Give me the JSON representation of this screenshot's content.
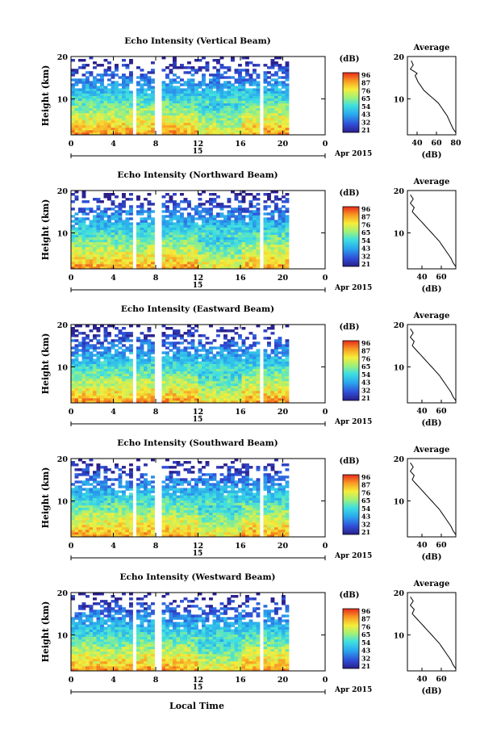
{
  "figure": {
    "xlabel": "Local Time",
    "date_label": "Apr 2015",
    "date_day": "15"
  },
  "chart_data": [
    {
      "type": "heatmap",
      "title": "Echo Intensity (Vertical Beam)",
      "ylabel": "Height (km)",
      "xlabel": "",
      "x_ticks": [
        "0",
        "4",
        "8",
        "12",
        "16",
        "20",
        "0"
      ],
      "y_ticks": [
        "10",
        "20"
      ],
      "xlim": [
        0,
        24
      ],
      "ylim": [
        1.5,
        20
      ],
      "colorbar_label": "(dB)",
      "colorbar_ticks": [
        "96",
        "87",
        "76",
        "65",
        "54",
        "43",
        "32",
        "21"
      ],
      "profile": {
        "title": "Average",
        "xlabel": "(dB)",
        "x_ticks": [
          "40",
          "60",
          "80"
        ],
        "y_ticks": [
          "10",
          "20"
        ],
        "xlim": [
          30,
          80
        ],
        "points": [
          [
            34,
            19
          ],
          [
            36,
            18
          ],
          [
            33,
            17
          ],
          [
            37,
            16.5
          ],
          [
            40,
            16
          ],
          [
            38,
            15.5
          ],
          [
            41,
            14
          ],
          [
            44,
            13
          ],
          [
            47,
            12
          ],
          [
            52,
            11
          ],
          [
            57,
            10
          ],
          [
            62,
            9
          ],
          [
            65,
            8
          ],
          [
            68,
            7
          ],
          [
            71,
            6
          ],
          [
            73,
            5
          ],
          [
            75,
            4
          ],
          [
            77,
            3
          ],
          [
            80,
            2
          ]
        ]
      },
      "data_end_time": 20.3,
      "gaps": [
        [
          5.5,
          5.9
        ],
        [
          7.8,
          8.3
        ],
        [
          17.6,
          17.9
        ]
      ]
    },
    {
      "type": "heatmap",
      "title": "Echo Intensity (Northward Beam)",
      "ylabel": "Height (km)",
      "xlabel": "",
      "x_ticks": [
        "0",
        "4",
        "8",
        "12",
        "16",
        "20",
        "0"
      ],
      "y_ticks": [
        "10",
        "20"
      ],
      "xlim": [
        0,
        24
      ],
      "ylim": [
        1.5,
        20
      ],
      "colorbar_label": "(dB)",
      "colorbar_ticks": [
        "96",
        "87",
        "76",
        "65",
        "54",
        "43",
        "32",
        "21"
      ],
      "profile": {
        "title": "Average",
        "xlabel": "(dB)",
        "x_ticks": [
          "40",
          "60"
        ],
        "y_ticks": [
          "10",
          "20"
        ],
        "xlim": [
          25,
          75
        ],
        "points": [
          [
            28,
            19
          ],
          [
            31,
            18
          ],
          [
            28,
            17
          ],
          [
            32,
            16
          ],
          [
            30,
            15
          ],
          [
            34,
            14
          ],
          [
            38,
            13
          ],
          [
            42,
            12
          ],
          [
            46,
            11
          ],
          [
            50,
            10
          ],
          [
            54,
            9
          ],
          [
            58,
            8
          ],
          [
            61,
            7
          ],
          [
            64,
            6
          ],
          [
            67,
            5
          ],
          [
            70,
            4
          ],
          [
            72,
            3
          ],
          [
            75,
            2
          ]
        ]
      },
      "data_end_time": 20.3,
      "gaps": [
        [
          5.5,
          5.9
        ],
        [
          7.8,
          8.3
        ],
        [
          17.6,
          17.9
        ]
      ]
    },
    {
      "type": "heatmap",
      "title": "Echo Intensity (Eastward Beam)",
      "ylabel": "Height (km)",
      "xlabel": "",
      "x_ticks": [
        "0",
        "4",
        "8",
        "12",
        "16",
        "20",
        "0"
      ],
      "y_ticks": [
        "10",
        "20"
      ],
      "xlim": [
        0,
        24
      ],
      "ylim": [
        1.5,
        20
      ],
      "colorbar_label": "(dB)",
      "colorbar_ticks": [
        "96",
        "87",
        "76",
        "65",
        "54",
        "43",
        "32",
        "21"
      ],
      "profile": {
        "title": "Average",
        "xlabel": "(dB)",
        "x_ticks": [
          "40",
          "60"
        ],
        "y_ticks": [
          "10",
          "20"
        ],
        "xlim": [
          25,
          75
        ],
        "points": [
          [
            28,
            19
          ],
          [
            31,
            18
          ],
          [
            28,
            17
          ],
          [
            32,
            16
          ],
          [
            30,
            15
          ],
          [
            34,
            14
          ],
          [
            38,
            13
          ],
          [
            42,
            12
          ],
          [
            46,
            11
          ],
          [
            50,
            10
          ],
          [
            54,
            9
          ],
          [
            58,
            8
          ],
          [
            61,
            7
          ],
          [
            64,
            6
          ],
          [
            67,
            5
          ],
          [
            70,
            4
          ],
          [
            72,
            3
          ],
          [
            75,
            2
          ]
        ]
      },
      "data_end_time": 20.3,
      "gaps": [
        [
          5.5,
          5.9
        ],
        [
          7.8,
          8.3
        ],
        [
          17.6,
          17.9
        ]
      ]
    },
    {
      "type": "heatmap",
      "title": "Echo Intensity (Southward Beam)",
      "ylabel": "Height (km)",
      "xlabel": "",
      "x_ticks": [
        "0",
        "4",
        "8",
        "12",
        "16",
        "20",
        "0"
      ],
      "y_ticks": [
        "10",
        "20"
      ],
      "xlim": [
        0,
        24
      ],
      "ylim": [
        1.5,
        20
      ],
      "colorbar_label": "(dB)",
      "colorbar_ticks": [
        "96",
        "87",
        "76",
        "65",
        "54",
        "43",
        "32",
        "21"
      ],
      "profile": {
        "title": "Average",
        "xlabel": "(dB)",
        "x_ticks": [
          "40",
          "60"
        ],
        "y_ticks": [
          "10",
          "20"
        ],
        "xlim": [
          25,
          75
        ],
        "points": [
          [
            28,
            19
          ],
          [
            31,
            18
          ],
          [
            28,
            17
          ],
          [
            32,
            16
          ],
          [
            30,
            15
          ],
          [
            34,
            14
          ],
          [
            38,
            13
          ],
          [
            42,
            12
          ],
          [
            46,
            11
          ],
          [
            50,
            10
          ],
          [
            54,
            9
          ],
          [
            58,
            8
          ],
          [
            61,
            7
          ],
          [
            64,
            6
          ],
          [
            67,
            5
          ],
          [
            70,
            4
          ],
          [
            72,
            3
          ],
          [
            75,
            2
          ]
        ]
      },
      "data_end_time": 20.3,
      "gaps": [
        [
          5.5,
          5.9
        ],
        [
          7.8,
          8.3
        ],
        [
          17.6,
          17.9
        ]
      ]
    },
    {
      "type": "heatmap",
      "title": "Echo Intensity (Westward Beam)",
      "ylabel": "Height (km)",
      "xlabel": "",
      "x_ticks": [
        "0",
        "4",
        "8",
        "12",
        "16",
        "20",
        "0"
      ],
      "y_ticks": [
        "10",
        "20"
      ],
      "xlim": [
        0,
        24
      ],
      "ylim": [
        1.5,
        20
      ],
      "colorbar_label": "(dB)",
      "colorbar_ticks": [
        "96",
        "87",
        "76",
        "65",
        "54",
        "43",
        "32",
        "21"
      ],
      "profile": {
        "title": "Average",
        "xlabel": "(dB)",
        "x_ticks": [
          "40",
          "60"
        ],
        "y_ticks": [
          "10",
          "20"
        ],
        "xlim": [
          25,
          75
        ],
        "points": [
          [
            28,
            19
          ],
          [
            31,
            18
          ],
          [
            28,
            17
          ],
          [
            32,
            16
          ],
          [
            30,
            15
          ],
          [
            34,
            14
          ],
          [
            38,
            13
          ],
          [
            42,
            12
          ],
          [
            46,
            11
          ],
          [
            50,
            10
          ],
          [
            54,
            9
          ],
          [
            58,
            8
          ],
          [
            61,
            7
          ],
          [
            64,
            6
          ],
          [
            67,
            5
          ],
          [
            70,
            4
          ],
          [
            72,
            3
          ],
          [
            75,
            2
          ]
        ]
      },
      "data_end_time": 20.3,
      "gaps": [
        [
          5.5,
          5.9
        ],
        [
          7.8,
          8.3
        ],
        [
          17.6,
          17.9
        ]
      ]
    }
  ]
}
